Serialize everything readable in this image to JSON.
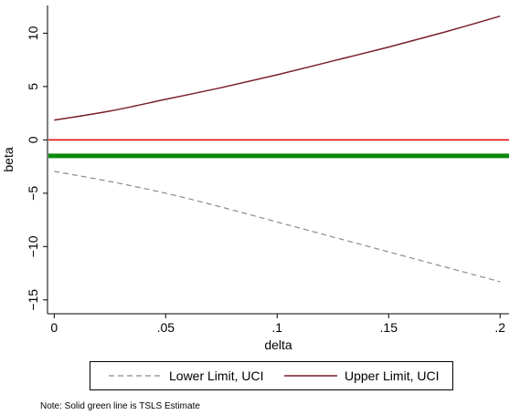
{
  "chart_data": {
    "type": "line",
    "xlabel": "delta",
    "ylabel": "beta",
    "xlim": [
      -0.003,
      0.204
    ],
    "ylim": [
      -16.3,
      12.6
    ],
    "x_ticks": [
      {
        "value": 0,
        "label": "0"
      },
      {
        "value": 0.05,
        "label": ".05"
      },
      {
        "value": 0.1,
        "label": ".1"
      },
      {
        "value": 0.15,
        "label": ".15"
      },
      {
        "value": 0.2,
        "label": ".2"
      }
    ],
    "y_ticks": [
      {
        "value": 10,
        "label": "10"
      },
      {
        "value": 5,
        "label": "5"
      },
      {
        "value": 0,
        "label": "0"
      },
      {
        "value": -5,
        "label": "−5"
      },
      {
        "value": -10,
        "label": "−10"
      },
      {
        "value": -15,
        "label": "−15"
      }
    ],
    "grid": false,
    "series": [
      {
        "name": "Lower Limit, UCI",
        "color": "#8c8c8c",
        "style": "dashed",
        "x": [
          0,
          0.025,
          0.05,
          0.075,
          0.1,
          0.125,
          0.15,
          0.175,
          0.2
        ],
        "y": [
          -2.95,
          -3.9,
          -5.0,
          -6.3,
          -7.7,
          -9.1,
          -10.5,
          -11.9,
          -13.3
        ]
      },
      {
        "name": "Upper Limit, UCI",
        "color": "#7a1f2b",
        "style": "solid",
        "x": [
          0,
          0.025,
          0.05,
          0.075,
          0.1,
          0.125,
          0.15,
          0.175,
          0.2
        ],
        "y": [
          1.85,
          2.7,
          3.8,
          4.9,
          6.1,
          7.4,
          8.7,
          10.1,
          11.6
        ]
      }
    ],
    "reference_lines": [
      {
        "y": 0,
        "color": "#e00000",
        "width": 1.5
      },
      {
        "y": -1.5,
        "color": "#0a8a0a",
        "width": 5
      }
    ],
    "legend_position": "bottom",
    "note": "Note: Solid green line is TSLS Estimate"
  }
}
